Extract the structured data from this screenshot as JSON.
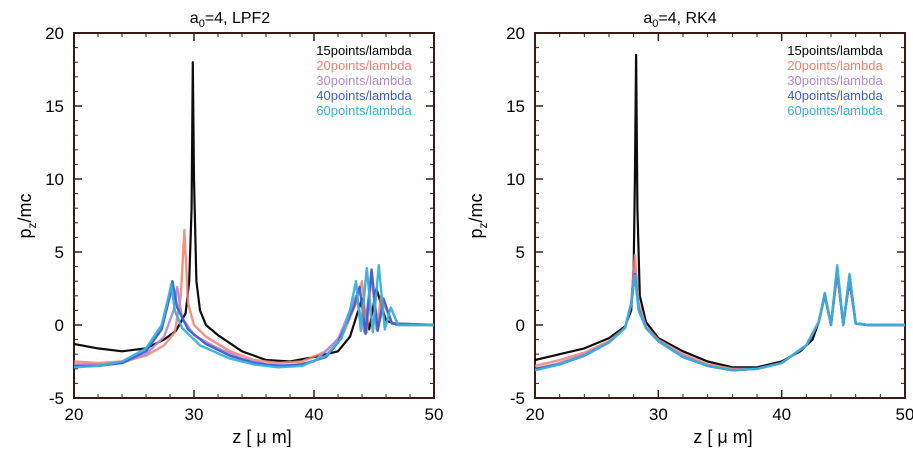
{
  "figure": {
    "panels": [
      {
        "title_main": "a",
        "title_sub": "0",
        "title_rest": "=4, LPF2",
        "ylabel_main": "p",
        "ylabel_sub": "z",
        "ylabel_rest": "/mc",
        "xlabel": "z  [ μ m]"
      },
      {
        "title_main": "a",
        "title_sub": "0",
        "title_rest": "=4, RK4",
        "ylabel_main": "p",
        "ylabel_sub": "z",
        "ylabel_rest": "/mc",
        "xlabel": "z  [ μ m]"
      }
    ]
  },
  "chart_data": [
    {
      "type": "scatter",
      "title": "a0=4, LPF2",
      "xlabel": "z  [ μ m]",
      "ylabel": "pz/mc",
      "xlim": [
        20,
        50
      ],
      "ylim": [
        -5,
        20
      ],
      "xticks": [
        20,
        30,
        40,
        50
      ],
      "yticks": [
        -5,
        0,
        5,
        10,
        15,
        20
      ],
      "legend_position": "top-right",
      "grid": false,
      "series": [
        {
          "name": "15points/lambda",
          "color": "#000000",
          "points": [
            [
              20,
              -1.3
            ],
            [
              22,
              -1.6
            ],
            [
              24,
              -1.8
            ],
            [
              26,
              -1.6
            ],
            [
              27.5,
              -1.0
            ],
            [
              28.5,
              -0.4
            ],
            [
              29.3,
              0.8
            ],
            [
              29.6,
              3.0
            ],
            [
              29.8,
              8.0
            ],
            [
              29.9,
              18.0
            ],
            [
              30.0,
              10.0
            ],
            [
              30.2,
              3.0
            ],
            [
              30.5,
              1.0
            ],
            [
              31,
              0.0
            ],
            [
              32,
              -0.7
            ],
            [
              34,
              -1.8
            ],
            [
              36,
              -2.4
            ],
            [
              38,
              -2.5
            ],
            [
              40,
              -2.2
            ],
            [
              42,
              -1.8
            ],
            [
              43,
              -0.8
            ],
            [
              44,
              1.8
            ],
            [
              44.6,
              -0.3
            ],
            [
              45.2,
              2.5
            ],
            [
              46,
              0.3
            ],
            [
              47,
              0.0
            ],
            [
              50,
              0.0
            ]
          ]
        },
        {
          "name": "20points/lambda",
          "color": "#f28070",
          "points": [
            [
              20,
              -2.5
            ],
            [
              22,
              -2.6
            ],
            [
              24,
              -2.5
            ],
            [
              26,
              -2.1
            ],
            [
              27.5,
              -1.4
            ],
            [
              28.4,
              -0.5
            ],
            [
              28.9,
              2.0
            ],
            [
              29.2,
              6.5
            ],
            [
              29.5,
              1.5
            ],
            [
              30,
              0.0
            ],
            [
              31,
              -0.8
            ],
            [
              33,
              -1.8
            ],
            [
              35,
              -2.4
            ],
            [
              37,
              -2.6
            ],
            [
              39,
              -2.5
            ],
            [
              41,
              -1.8
            ],
            [
              42.5,
              -0.5
            ],
            [
              43.5,
              1.5
            ],
            [
              44,
              3.0
            ],
            [
              44.4,
              -0.5
            ],
            [
              44.8,
              3.6
            ],
            [
              45.2,
              -0.3
            ],
            [
              45.6,
              2.0
            ],
            [
              46.5,
              0.1
            ],
            [
              50,
              0.0
            ]
          ]
        },
        {
          "name": "30points/lambda",
          "color": "#b38ad6",
          "points": [
            [
              20,
              -2.7
            ],
            [
              22,
              -2.7
            ],
            [
              24,
              -2.6
            ],
            [
              26,
              -2.0
            ],
            [
              27.5,
              -0.8
            ],
            [
              28.3,
              1.0
            ],
            [
              28.6,
              2.6
            ],
            [
              29.0,
              0.5
            ],
            [
              30,
              -0.7
            ],
            [
              32,
              -1.6
            ],
            [
              34,
              -2.3
            ],
            [
              36,
              -2.7
            ],
            [
              38,
              -2.8
            ],
            [
              40,
              -2.5
            ],
            [
              42,
              -1.0
            ],
            [
              43.5,
              2.0
            ],
            [
              44.2,
              -0.5
            ],
            [
              44.8,
              3.6
            ],
            [
              45.3,
              -0.4
            ],
            [
              45.8,
              1.5
            ],
            [
              46.5,
              0.1
            ],
            [
              50,
              0.0
            ]
          ]
        },
        {
          "name": "40points/lambda",
          "color": "#3f5fd0",
          "points": [
            [
              20,
              -2.8
            ],
            [
              22,
              -2.8
            ],
            [
              24,
              -2.6
            ],
            [
              26,
              -1.8
            ],
            [
              27.3,
              -0.3
            ],
            [
              28.0,
              2.0
            ],
            [
              28.2,
              3.0
            ],
            [
              28.6,
              1.2
            ],
            [
              29.5,
              -0.3
            ],
            [
              31,
              -1.3
            ],
            [
              33,
              -2.1
            ],
            [
              35,
              -2.6
            ],
            [
              37,
              -2.8
            ],
            [
              39,
              -2.7
            ],
            [
              41,
              -2.2
            ],
            [
              42,
              -1.2
            ],
            [
              43.3,
              1.2
            ],
            [
              43.8,
              2.6
            ],
            [
              44.3,
              -0.6
            ],
            [
              44.8,
              3.8
            ],
            [
              45.3,
              -0.4
            ],
            [
              45.8,
              1.8
            ],
            [
              46.5,
              0.1
            ],
            [
              50,
              0.0
            ]
          ]
        },
        {
          "name": "60points/lambda",
          "color": "#39b0d8",
          "points": [
            [
              20,
              -2.9
            ],
            [
              22,
              -2.8
            ],
            [
              24,
              -2.5
            ],
            [
              26,
              -1.6
            ],
            [
              27.3,
              0.0
            ],
            [
              27.9,
              2.0
            ],
            [
              28.1,
              2.8
            ],
            [
              28.4,
              1.0
            ],
            [
              29.0,
              -0.2
            ],
            [
              30.5,
              -1.4
            ],
            [
              33,
              -2.3
            ],
            [
              35,
              -2.7
            ],
            [
              37,
              -2.9
            ],
            [
              39,
              -2.8
            ],
            [
              41,
              -2.1
            ],
            [
              42.3,
              -0.9
            ],
            [
              43.0,
              1.0
            ],
            [
              43.5,
              3.0
            ],
            [
              43.9,
              -0.4
            ],
            [
              44.4,
              3.9
            ],
            [
              44.9,
              -0.5
            ],
            [
              45.4,
              4.1
            ],
            [
              45.9,
              -0.3
            ],
            [
              46.4,
              1.2
            ],
            [
              47,
              0.0
            ],
            [
              50,
              0.0
            ]
          ]
        }
      ]
    },
    {
      "type": "scatter",
      "title": "a0=4, RK4",
      "xlabel": "z  [ μ m]",
      "ylabel": "pz/mc",
      "xlim": [
        20,
        50
      ],
      "ylim": [
        -5,
        20
      ],
      "xticks": [
        20,
        30,
        40,
        50
      ],
      "yticks": [
        -5,
        0,
        5,
        10,
        15,
        20
      ],
      "legend_position": "top-right",
      "grid": false,
      "series": [
        {
          "name": "15points/lambda",
          "color": "#000000",
          "points": [
            [
              20,
              -2.4
            ],
            [
              22,
              -2.0
            ],
            [
              24,
              -1.6
            ],
            [
              26,
              -0.9
            ],
            [
              27.3,
              -0.1
            ],
            [
              27.8,
              1.0
            ],
            [
              28.0,
              4.0
            ],
            [
              28.1,
              10.0
            ],
            [
              28.2,
              18.5
            ],
            [
              28.3,
              8.0
            ],
            [
              28.5,
              2.0
            ],
            [
              29.0,
              0.2
            ],
            [
              30,
              -0.9
            ],
            [
              32,
              -1.8
            ],
            [
              34,
              -2.5
            ],
            [
              36,
              -2.9
            ],
            [
              38,
              -2.9
            ],
            [
              40,
              -2.5
            ],
            [
              41.5,
              -1.8
            ],
            [
              42.5,
              -1.0
            ],
            [
              43,
              0.2
            ],
            [
              43.5,
              2.0
            ],
            [
              44,
              0.0
            ],
            [
              44.5,
              3.5
            ],
            [
              45,
              0.0
            ],
            [
              45.5,
              3.0
            ],
            [
              46,
              0.1
            ],
            [
              47,
              0.0
            ],
            [
              50,
              0.0
            ]
          ]
        },
        {
          "name": "20points/lambda",
          "color": "#f28070",
          "points": [
            [
              20,
              -2.8
            ],
            [
              22,
              -2.4
            ],
            [
              24,
              -1.9
            ],
            [
              26,
              -1.1
            ],
            [
              27.3,
              -0.2
            ],
            [
              27.8,
              1.5
            ],
            [
              28.1,
              4.8
            ],
            [
              28.4,
              1.5
            ],
            [
              29.0,
              -0.1
            ],
            [
              30,
              -1.0
            ],
            [
              32,
              -2.0
            ],
            [
              34,
              -2.7
            ],
            [
              36,
              -3.0
            ],
            [
              38,
              -3.0
            ],
            [
              40,
              -2.6
            ],
            [
              42,
              -1.4
            ],
            [
              43,
              0.2
            ],
            [
              43.5,
              2.0
            ],
            [
              44,
              0.0
            ],
            [
              44.5,
              3.6
            ],
            [
              45,
              0.0
            ],
            [
              45.5,
              3.2
            ],
            [
              46,
              0.1
            ],
            [
              47,
              0.0
            ],
            [
              50,
              0.0
            ]
          ]
        },
        {
          "name": "30points/lambda",
          "color": "#b38ad6",
          "points": [
            [
              20,
              -3.0
            ],
            [
              22,
              -2.6
            ],
            [
              24,
              -2.0
            ],
            [
              26,
              -1.2
            ],
            [
              27.3,
              -0.2
            ],
            [
              27.8,
              1.5
            ],
            [
              28.1,
              3.8
            ],
            [
              28.4,
              1.2
            ],
            [
              29.0,
              -0.2
            ],
            [
              30,
              -1.1
            ],
            [
              32,
              -2.1
            ],
            [
              34,
              -2.8
            ],
            [
              36,
              -3.1
            ],
            [
              38,
              -3.0
            ],
            [
              40,
              -2.6
            ],
            [
              42,
              -1.4
            ],
            [
              43,
              0.2
            ],
            [
              43.5,
              2.0
            ],
            [
              44,
              0.0
            ],
            [
              44.5,
              3.8
            ],
            [
              45,
              0.0
            ],
            [
              45.5,
              3.3
            ],
            [
              46,
              0.1
            ],
            [
              47,
              0.0
            ],
            [
              50,
              0.0
            ]
          ]
        },
        {
          "name": "40points/lambda",
          "color": "#3f5fd0",
          "points": [
            [
              20,
              -3.0
            ],
            [
              22,
              -2.7
            ],
            [
              24,
              -2.1
            ],
            [
              26,
              -1.2
            ],
            [
              27.3,
              -0.2
            ],
            [
              27.8,
              1.4
            ],
            [
              28.1,
              3.5
            ],
            [
              28.4,
              1.1
            ],
            [
              29.0,
              -0.2
            ],
            [
              30,
              -1.1
            ],
            [
              32,
              -2.2
            ],
            [
              34,
              -2.8
            ],
            [
              36,
              -3.1
            ],
            [
              38,
              -3.0
            ],
            [
              40,
              -2.6
            ],
            [
              42,
              -1.4
            ],
            [
              43,
              0.2
            ],
            [
              43.5,
              2.1
            ],
            [
              44,
              0.0
            ],
            [
              44.5,
              3.9
            ],
            [
              45,
              0.0
            ],
            [
              45.5,
              3.4
            ],
            [
              46,
              0.1
            ],
            [
              47,
              0.0
            ],
            [
              50,
              0.0
            ]
          ]
        },
        {
          "name": "60points/lambda",
          "color": "#39b0d8",
          "points": [
            [
              20,
              -3.1
            ],
            [
              22,
              -2.7
            ],
            [
              24,
              -2.1
            ],
            [
              26,
              -1.2
            ],
            [
              27.3,
              -0.2
            ],
            [
              27.8,
              1.4
            ],
            [
              28.1,
              3.4
            ],
            [
              28.4,
              1.0
            ],
            [
              29.0,
              -0.2
            ],
            [
              30,
              -1.1
            ],
            [
              32,
              -2.2
            ],
            [
              34,
              -2.8
            ],
            [
              36,
              -3.1
            ],
            [
              38,
              -3.0
            ],
            [
              40,
              -2.6
            ],
            [
              42,
              -1.4
            ],
            [
              43,
              0.2
            ],
            [
              43.5,
              2.2
            ],
            [
              44,
              0.0
            ],
            [
              44.5,
              4.1
            ],
            [
              45,
              0.0
            ],
            [
              45.5,
              3.5
            ],
            [
              46,
              0.1
            ],
            [
              47,
              0.0
            ],
            [
              50,
              0.0
            ]
          ]
        }
      ]
    }
  ]
}
